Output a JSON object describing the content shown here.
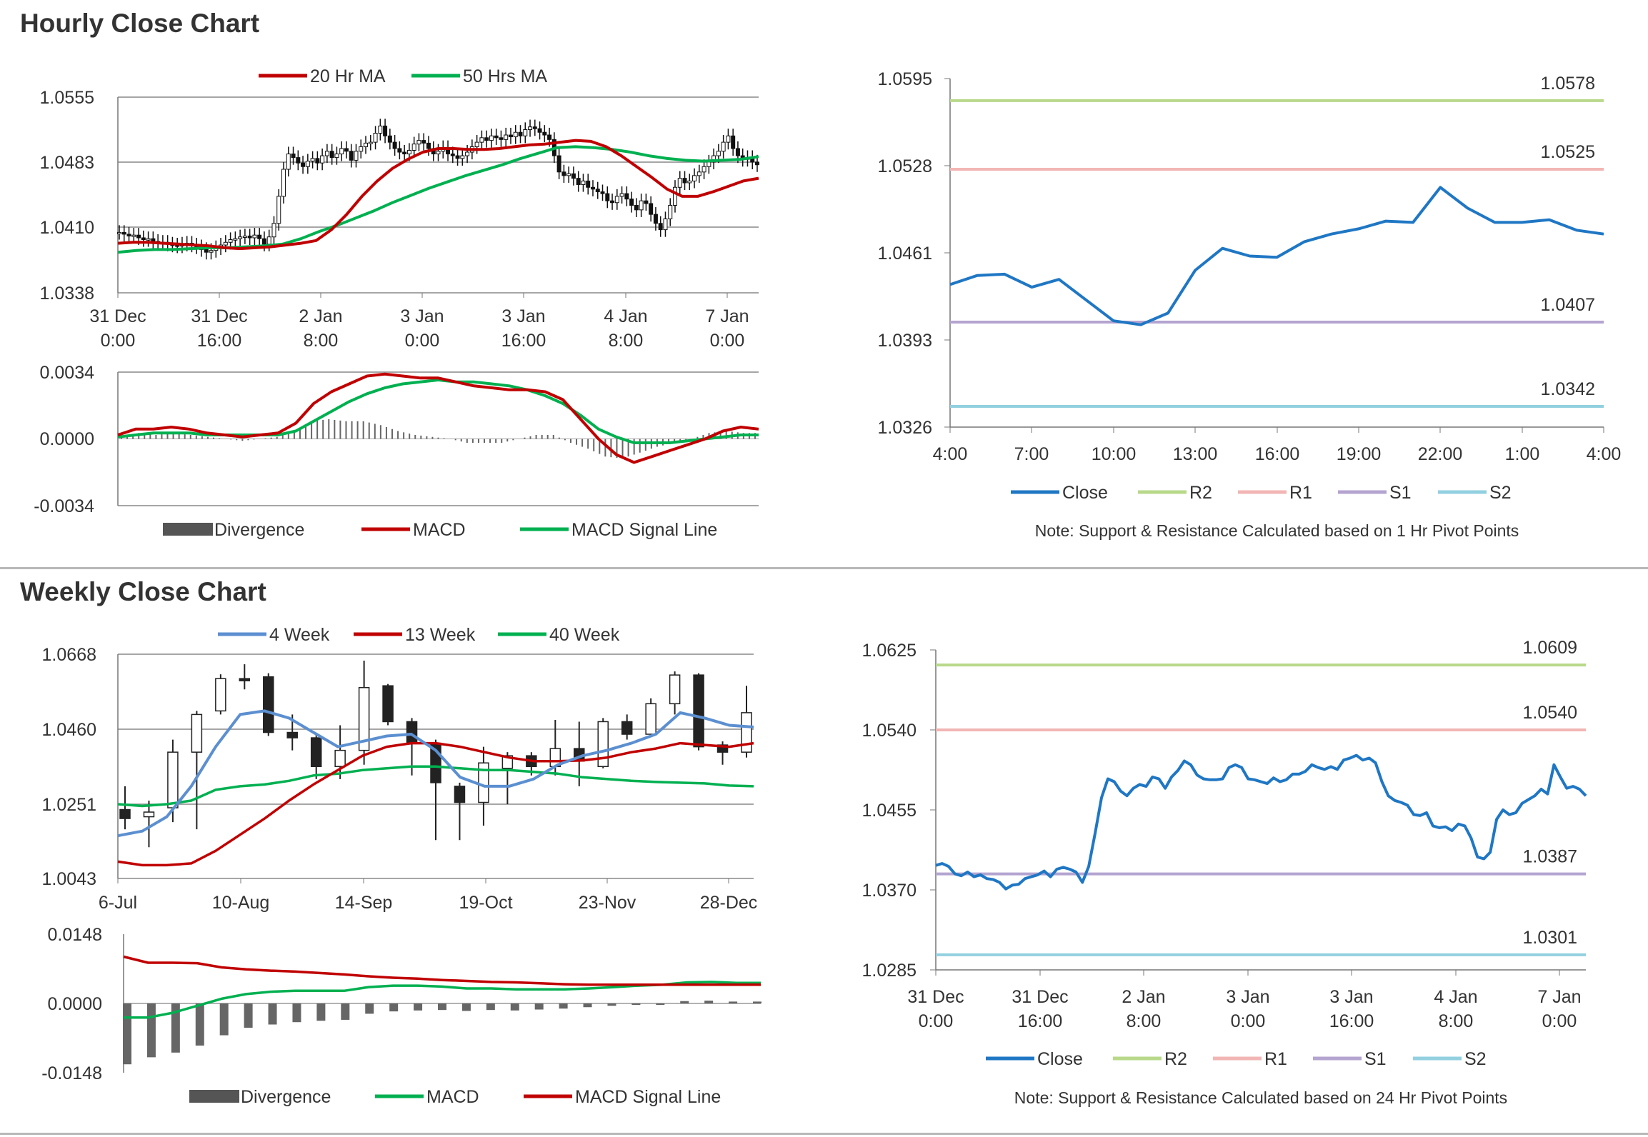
{
  "page": {
    "hourly_title": "Hourly Close Chart",
    "weekly_title": "Weekly Close Chart"
  },
  "colors": {
    "red": "#c00000",
    "green": "#00b050",
    "blue": "#1f77c4",
    "steelblue": "#5b8fd0",
    "r2": "#b8d98a",
    "r1": "#f1b6b4",
    "s1": "#b4a4d0",
    "s2": "#92d0e0",
    "bar": "#555555"
  },
  "chart_data": [
    {
      "id": "hourly_price",
      "type": "candlestick",
      "legend": [
        "20 Hr MA",
        "50 Hrs MA"
      ],
      "legend_position": "top",
      "y_ticks": [
        "1.0555",
        "1.0483",
        "1.0410",
        "1.0338"
      ],
      "ylim": [
        1.0338,
        1.0555
      ],
      "x_ticks": [
        "31 Dec\n0:00",
        "31 Dec\n16:00",
        "2 Jan\n8:00",
        "3 Jan\n0:00",
        "3 Jan\n16:00",
        "4 Jan\n8:00",
        "7 Jan\n0:00"
      ],
      "close": [
        1.0405,
        1.0403,
        1.0401,
        1.0402,
        1.0399,
        1.0397,
        1.0398,
        1.0395,
        1.0393,
        1.0394,
        1.0392,
        1.0391,
        1.039,
        1.0392,
        1.0393,
        1.0391,
        1.0389,
        1.0386,
        1.0383,
        1.0385,
        1.0388,
        1.0391,
        1.0394,
        1.0397,
        1.0398,
        1.04,
        1.0401,
        1.0399,
        1.0402,
        1.0398,
        1.0392,
        1.04,
        1.0415,
        1.0445,
        1.0475,
        1.0492,
        1.0488,
        1.0482,
        1.0478,
        1.0484,
        1.0487,
        1.0482,
        1.049,
        1.0495,
        1.0488,
        1.0492,
        1.0498,
        1.0495,
        1.0485,
        1.0495,
        1.05,
        1.0504,
        1.0505,
        1.0515,
        1.0523,
        1.0512,
        1.0505,
        1.0498,
        1.0494,
        1.0492,
        1.0496,
        1.0503,
        1.0507,
        1.0504,
        1.0498,
        1.0492,
        1.0495,
        1.0499,
        1.0492,
        1.049,
        1.0487,
        1.049,
        1.0494,
        1.05,
        1.0505,
        1.051,
        1.0507,
        1.0512,
        1.051,
        1.0508,
        1.0513,
        1.0511,
        1.0516,
        1.0512,
        1.0519,
        1.0522,
        1.052,
        1.0516,
        1.0513,
        1.0508,
        1.049,
        1.0472,
        1.0468,
        1.047,
        1.0465,
        1.0458,
        1.0462,
        1.0455,
        1.0453,
        1.045,
        1.0448,
        1.044,
        1.0438,
        1.0445,
        1.0448,
        1.0442,
        1.0435,
        1.043,
        1.044,
        1.0437,
        1.0425,
        1.0415,
        1.0408,
        1.042,
        1.0435,
        1.0455,
        1.0465,
        1.046,
        1.0462,
        1.0468,
        1.0472,
        1.0478,
        1.0483,
        1.049,
        1.0495,
        1.0505,
        1.0512,
        1.0498,
        1.049,
        1.0486,
        1.0488,
        1.0483,
        1.048
      ],
      "ma20": [
        1.0393,
        1.0394,
        1.0394,
        1.0393,
        1.0392,
        1.0391,
        1.039,
        1.0388,
        1.0387,
        1.0388,
        1.0389,
        1.0391,
        1.0393,
        1.0396,
        1.0408,
        1.0425,
        1.0445,
        1.0462,
        1.0476,
        1.0486,
        1.0494,
        1.0498,
        1.0498,
        1.0497,
        1.0497,
        1.0498,
        1.05,
        1.0502,
        1.0503,
        1.0505,
        1.0507,
        1.0506,
        1.05,
        1.049,
        1.0478,
        1.0466,
        1.0453,
        1.0445,
        1.0445,
        1.045,
        1.0456,
        1.0462,
        1.0465
      ],
      "ma50": [
        1.0383,
        1.0385,
        1.0386,
        1.0386,
        1.0387,
        1.0388,
        1.0388,
        1.0389,
        1.039,
        1.0392,
        1.0398,
        1.0406,
        1.0413,
        1.0421,
        1.0429,
        1.0438,
        1.0446,
        1.0454,
        1.0461,
        1.0468,
        1.0474,
        1.048,
        1.0487,
        1.0493,
        1.0499,
        1.05,
        1.0499,
        1.0497,
        1.0494,
        1.049,
        1.0487,
        1.0485,
        1.0484,
        1.0485,
        1.0486,
        1.0489
      ]
    },
    {
      "id": "hourly_macd",
      "type": "macd",
      "legend": [
        "Divergence",
        "MACD",
        "MACD Signal Line"
      ],
      "legend_position": "bottom",
      "y_ticks": [
        "0.0034",
        "0.0000",
        "-0.0034"
      ],
      "ylim": [
        -0.0034,
        0.0034
      ],
      "macd": [
        0.0002,
        0.0005,
        0.0005,
        0.0006,
        0.0005,
        0.0003,
        0.0002,
        0.0001,
        0.0002,
        0.0003,
        0.0008,
        0.0018,
        0.0024,
        0.0028,
        0.0032,
        0.0033,
        0.0032,
        0.0031,
        0.0031,
        0.0029,
        0.0027,
        0.0026,
        0.0025,
        0.0025,
        0.0024,
        0.002,
        0.001,
        0.0,
        -0.0008,
        -0.0012,
        -0.0009,
        -0.0006,
        -0.0003,
        0.0,
        0.0004,
        0.0006,
        0.0005
      ],
      "signal": [
        0.0001,
        0.0002,
        0.0003,
        0.0003,
        0.0003,
        0.0002,
        0.0002,
        0.0002,
        0.0002,
        0.0002,
        0.0004,
        0.0009,
        0.0014,
        0.0019,
        0.0023,
        0.0026,
        0.0028,
        0.0029,
        0.003,
        0.0029,
        0.0029,
        0.0028,
        0.0027,
        0.0025,
        0.0022,
        0.0018,
        0.0012,
        0.0005,
        0.0001,
        -0.0002,
        -0.0002,
        -0.0002,
        -0.0001,
        0.0,
        0.0001,
        0.0002,
        0.0002
      ],
      "divergence": [
        0.0001,
        0.0003,
        0.0002,
        0.0003,
        0.0002,
        0.0001,
        0.0,
        -0.0001,
        0.0,
        0.0001,
        0.0004,
        0.0009,
        0.001,
        0.0009,
        0.0009,
        0.0007,
        0.0004,
        0.0002,
        0.0001,
        0.0,
        -0.0002,
        -0.0002,
        -0.0002,
        0.0,
        0.0002,
        0.0002,
        -0.0002,
        -0.0005,
        -0.0009,
        -0.001,
        -0.0007,
        -0.0004,
        -0.0002,
        0.0,
        0.0003,
        0.0004,
        0.0003
      ]
    },
    {
      "id": "hourly_pivot",
      "type": "line",
      "legend": [
        "Close",
        "R2",
        "R1",
        "S1",
        "S2"
      ],
      "legend_position": "bottom",
      "note": "Note: Support & Resistance Calculated based on 1 Hr Pivot Points",
      "y_ticks": [
        "1.0595",
        "1.0528",
        "1.0461",
        "1.0393",
        "1.0326"
      ],
      "ylim": [
        1.0326,
        1.0595
      ],
      "x_ticks": [
        "4:00",
        "7:00",
        "10:00",
        "13:00",
        "16:00",
        "19:00",
        "22:00",
        "1:00",
        "4:00"
      ],
      "close": [
        1.0436,
        1.0443,
        1.0444,
        1.0434,
        1.044,
        1.0424,
        1.0408,
        1.0405,
        1.0414,
        1.0447,
        1.0464,
        1.0458,
        1.0457,
        1.0469,
        1.0475,
        1.0479,
        1.0485,
        1.0484,
        1.0511,
        1.0495,
        1.0484,
        1.0484,
        1.0486,
        1.0478,
        1.0475
      ],
      "levels": [
        {
          "name": "R2",
          "value": 1.0578,
          "label": "1.0578"
        },
        {
          "name": "R1",
          "value": 1.0525,
          "label": "1.0525"
        },
        {
          "name": "S1",
          "value": 1.0407,
          "label": "1.0407"
        },
        {
          "name": "S2",
          "value": 1.0342,
          "label": "1.0342"
        }
      ]
    },
    {
      "id": "weekly_price",
      "type": "candlestick",
      "legend": [
        "4 Week",
        "13 Week",
        "40 Week"
      ],
      "legend_position": "top",
      "y_ticks": [
        "1.0668",
        "1.0460",
        "1.0251",
        "1.0043"
      ],
      "ylim": [
        1.0043,
        1.0668
      ],
      "x_ticks": [
        "6-Jul",
        "10-Aug",
        "14-Sep",
        "19-Oct",
        "23-Nov",
        "28-Dec"
      ],
      "candles": [
        {
          "o": 1.0235,
          "c": 1.021,
          "h": 1.03,
          "l": 1.018
        },
        {
          "o": 1.0215,
          "c": 1.0228,
          "h": 1.026,
          "l": 1.013
        },
        {
          "o": 1.024,
          "c": 1.0395,
          "h": 1.043,
          "l": 1.02
        },
        {
          "o": 1.0395,
          "c": 1.05,
          "h": 1.051,
          "l": 1.018
        },
        {
          "o": 1.051,
          "c": 1.06,
          "h": 1.0612,
          "l": 1.05
        },
        {
          "o": 1.06,
          "c": 1.0595,
          "h": 1.064,
          "l": 1.057
        },
        {
          "o": 1.0605,
          "c": 1.045,
          "h": 1.0615,
          "l": 1.044
        },
        {
          "o": 1.045,
          "c": 1.0435,
          "h": 1.05,
          "l": 1.04
        },
        {
          "o": 1.0435,
          "c": 1.0355,
          "h": 1.0445,
          "l": 1.032
        },
        {
          "o": 1.0355,
          "c": 1.04,
          "h": 1.047,
          "l": 1.032
        },
        {
          "o": 1.04,
          "c": 1.0575,
          "h": 1.065,
          "l": 1.036
        },
        {
          "o": 1.058,
          "c": 1.048,
          "h": 1.0585,
          "l": 1.047
        },
        {
          "o": 1.048,
          "c": 1.042,
          "h": 1.049,
          "l": 1.033
        },
        {
          "o": 1.042,
          "c": 1.031,
          "h": 1.043,
          "l": 1.015
        },
        {
          "o": 1.03,
          "c": 1.0255,
          "h": 1.031,
          "l": 1.015
        },
        {
          "o": 1.0255,
          "c": 1.0365,
          "h": 1.041,
          "l": 1.019
        },
        {
          "o": 1.035,
          "c": 1.0385,
          "h": 1.0395,
          "l": 1.025
        },
        {
          "o": 1.0385,
          "c": 1.0355,
          "h": 1.0395,
          "l": 1.033
        },
        {
          "o": 1.0355,
          "c": 1.0405,
          "h": 1.0485,
          "l": 1.033
        },
        {
          "o": 1.0405,
          "c": 1.037,
          "h": 1.048,
          "l": 1.03
        },
        {
          "o": 1.0355,
          "c": 1.048,
          "h": 1.049,
          "l": 1.035
        },
        {
          "o": 1.048,
          "c": 1.0445,
          "h": 1.05,
          "l": 1.043
        },
        {
          "o": 1.0445,
          "c": 1.053,
          "h": 1.0545,
          "l": 1.044
        },
        {
          "o": 1.053,
          "c": 1.061,
          "h": 1.062,
          "l": 1.05
        },
        {
          "o": 1.061,
          "c": 1.041,
          "h": 1.0615,
          "l": 1.04
        },
        {
          "o": 1.0415,
          "c": 1.0395,
          "h": 1.0425,
          "l": 1.036
        },
        {
          "o": 1.0395,
          "c": 1.0505,
          "h": 1.058,
          "l": 1.038
        }
      ],
      "ma4": [
        1.0162,
        1.0175,
        1.0215,
        1.03,
        1.041,
        1.05,
        1.051,
        1.049,
        1.045,
        1.041,
        1.0425,
        1.044,
        1.0445,
        1.04,
        1.0325,
        1.03,
        1.03,
        1.032,
        1.036,
        1.0385,
        1.04,
        1.042,
        1.0445,
        1.0505,
        1.049,
        1.047,
        1.0465
      ],
      "ma13": [
        1.009,
        1.008,
        1.008,
        1.0085,
        1.012,
        1.0165,
        1.021,
        1.026,
        1.0305,
        1.0345,
        1.0385,
        1.041,
        1.042,
        1.042,
        1.041,
        1.0395,
        1.038,
        1.037,
        1.037,
        1.0372,
        1.038,
        1.0395,
        1.0405,
        1.042,
        1.0415,
        1.041,
        1.042
      ],
      "ma40": [
        1.025,
        1.0245,
        1.025,
        1.026,
        1.029,
        1.03,
        1.0305,
        1.0315,
        1.033,
        1.0335,
        1.0345,
        1.035,
        1.0355,
        1.0355,
        1.035,
        1.0345,
        1.0345,
        1.034,
        1.0335,
        1.0325,
        1.032,
        1.0315,
        1.0312,
        1.031,
        1.0308,
        1.0302,
        1.03
      ]
    },
    {
      "id": "weekly_macd",
      "type": "macd",
      "legend": [
        "Divergence",
        "MACD",
        "MACD Signal Line"
      ],
      "legend_position": "bottom",
      "y_ticks": [
        "0.0148",
        "0.0000",
        "-0.0148"
      ],
      "ylim": [
        -0.0148,
        0.0148
      ],
      "signal": [
        0.01,
        0.0087,
        0.0087,
        0.0086,
        0.0077,
        0.0073,
        0.007,
        0.0068,
        0.0065,
        0.0062,
        0.0058,
        0.0055,
        0.0053,
        0.005,
        0.0048,
        0.0046,
        0.0045,
        0.0043,
        0.0041,
        0.004,
        0.004,
        0.004,
        0.004,
        0.004,
        0.004,
        0.004,
        0.004
      ],
      "macd": [
        -0.003,
        -0.003,
        -0.002,
        -0.0005,
        0.001,
        0.002,
        0.0025,
        0.0027,
        0.0027,
        0.0027,
        0.0035,
        0.0038,
        0.0038,
        0.0036,
        0.0032,
        0.0032,
        0.003,
        0.003,
        0.003,
        0.0032,
        0.0035,
        0.0038,
        0.004,
        0.0045,
        0.0046,
        0.0044,
        0.0044
      ],
      "divergence": [
        -0.013,
        -0.0115,
        -0.0105,
        -0.009,
        -0.0068,
        -0.0052,
        -0.0045,
        -0.004,
        -0.0037,
        -0.0035,
        -0.0022,
        -0.0017,
        -0.0015,
        -0.0014,
        -0.0016,
        -0.0014,
        -0.0015,
        -0.0013,
        -0.0011,
        -0.0008,
        -0.0005,
        -0.0002,
        -0.0001,
        0.0005,
        0.0006,
        0.0004,
        0.0004
      ]
    },
    {
      "id": "weekly_pivot",
      "type": "line",
      "legend": [
        "Close",
        "R2",
        "R1",
        "S1",
        "S2"
      ],
      "legend_position": "bottom",
      "note": "Note: Support & Resistance Calculated based on 24 Hr Pivot Points",
      "y_ticks": [
        "1.0625",
        "1.0540",
        "1.0455",
        "1.0370",
        "1.0285"
      ],
      "ylim": [
        1.0285,
        1.0625
      ],
      "x_ticks": [
        "31 Dec\n0:00",
        "31 Dec\n16:00",
        "2 Jan\n8:00",
        "3 Jan\n0:00",
        "3 Jan\n16:00",
        "4 Jan\n8:00",
        "7 Jan\n0:00"
      ],
      "close": [
        1.0396,
        1.0398,
        1.0395,
        1.0387,
        1.0385,
        1.0389,
        1.0384,
        1.0386,
        1.0382,
        1.0381,
        1.0378,
        1.0371,
        1.0375,
        1.0376,
        1.0382,
        1.0384,
        1.0386,
        1.039,
        1.0384,
        1.0392,
        1.0394,
        1.0392,
        1.0389,
        1.0378,
        1.0395,
        1.043,
        1.0468,
        1.0488,
        1.0485,
        1.0475,
        1.047,
        1.0478,
        1.0482,
        1.048,
        1.049,
        1.0488,
        1.0478,
        1.049,
        1.0497,
        1.0507,
        1.0503,
        1.0492,
        1.0488,
        1.0487,
        1.0487,
        1.0488,
        1.05,
        1.0503,
        1.05,
        1.0488,
        1.0487,
        1.0485,
        1.0483,
        1.0489,
        1.0485,
        1.0487,
        1.0493,
        1.0493,
        1.0496,
        1.0503,
        1.05,
        1.0498,
        1.0501,
        1.0498,
        1.0508,
        1.051,
        1.0513,
        1.0508,
        1.051,
        1.0505,
        1.0485,
        1.047,
        1.0465,
        1.0463,
        1.046,
        1.045,
        1.0449,
        1.0452,
        1.0438,
        1.0436,
        1.0437,
        1.0433,
        1.044,
        1.0438,
        1.0425,
        1.0405,
        1.0403,
        1.041,
        1.0445,
        1.0455,
        1.045,
        1.0452,
        1.0462,
        1.0466,
        1.047,
        1.0477,
        1.0472,
        1.0503,
        1.049,
        1.0478,
        1.048,
        1.0477,
        1.047
      ],
      "levels": [
        {
          "name": "R2",
          "value": 1.0609,
          "label": "1.0609"
        },
        {
          "name": "R1",
          "value": 1.054,
          "label": "1.0540"
        },
        {
          "name": "S1",
          "value": 1.0387,
          "label": "1.0387"
        },
        {
          "name": "S2",
          "value": 1.0301,
          "label": "1.0301"
        }
      ]
    }
  ]
}
